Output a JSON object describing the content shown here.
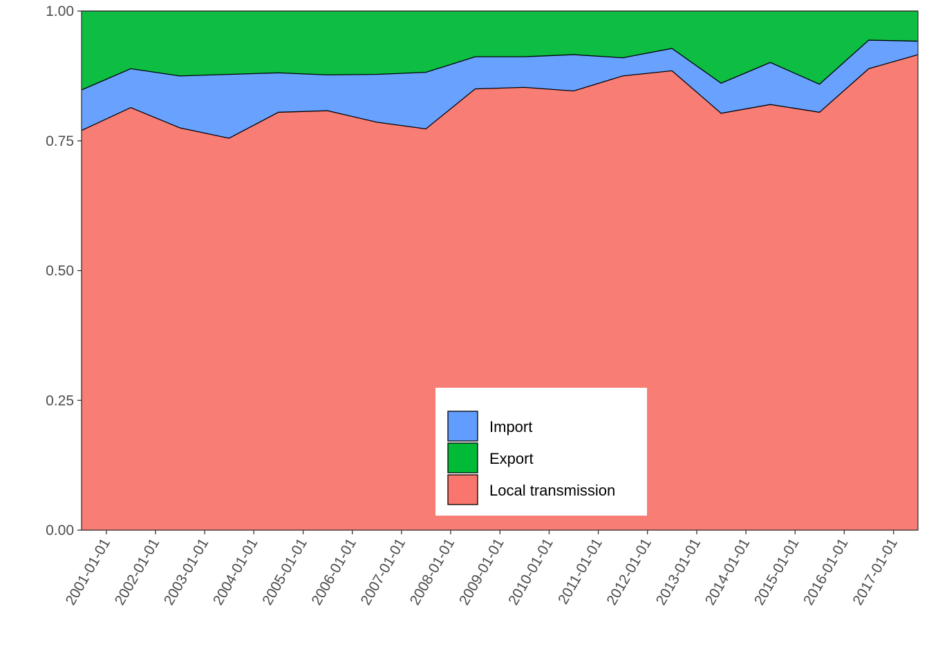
{
  "chart_data": {
    "type": "area",
    "stacked": true,
    "normalized": true,
    "title": "",
    "xlabel": "",
    "ylabel": "",
    "x": [
      "2000-07-01",
      "2001-07-01",
      "2002-07-01",
      "2003-07-01",
      "2004-07-01",
      "2005-07-01",
      "2006-07-01",
      "2007-07-01",
      "2008-07-01",
      "2009-07-01",
      "2010-07-01",
      "2011-07-01",
      "2012-07-01",
      "2013-07-01",
      "2014-07-01",
      "2015-07-01",
      "2016-07-01",
      "2017-07-01"
    ],
    "x_ticks": [
      "2001-01-01",
      "2002-01-01",
      "2003-01-01",
      "2004-01-01",
      "2005-01-01",
      "2006-01-01",
      "2007-01-01",
      "2008-01-01",
      "2009-01-01",
      "2010-01-01",
      "2011-01-01",
      "2012-01-01",
      "2013-01-01",
      "2014-01-01",
      "2015-01-01",
      "2016-01-01",
      "2017-01-01"
    ],
    "xlim": [
      "2000-07-01",
      "2017-07-01"
    ],
    "ylim": [
      0,
      1
    ],
    "y_ticks": [
      "0.00",
      "0.25",
      "0.50",
      "0.75",
      "1.00"
    ],
    "grid": false,
    "legend_position": "bottom-center",
    "series": [
      {
        "name": "Local transmission",
        "color": "#F8766D",
        "values": [
          0.77,
          0.814,
          0.775,
          0.755,
          0.805,
          0.808,
          0.786,
          0.773,
          0.85,
          0.853,
          0.846,
          0.875,
          0.885,
          0.803,
          0.82,
          0.805,
          0.889,
          0.916
        ]
      },
      {
        "name": "Import",
        "color": "#619CFF",
        "values": [
          0.078,
          0.075,
          0.1,
          0.123,
          0.076,
          0.069,
          0.092,
          0.109,
          0.062,
          0.059,
          0.07,
          0.035,
          0.043,
          0.058,
          0.081,
          0.054,
          0.055,
          0.026
        ]
      },
      {
        "name": "Export",
        "color": "#00BA38",
        "values": [
          0.152,
          0.111,
          0.125,
          0.122,
          0.119,
          0.123,
          0.122,
          0.118,
          0.088,
          0.088,
          0.084,
          0.09,
          0.072,
          0.139,
          0.099,
          0.141,
          0.056,
          0.058
        ]
      }
    ],
    "legend": [
      {
        "label": "Import",
        "color": "#619CFF"
      },
      {
        "label": "Export",
        "color": "#00BA38"
      },
      {
        "label": "Local transmission",
        "color": "#F8766D"
      }
    ]
  }
}
